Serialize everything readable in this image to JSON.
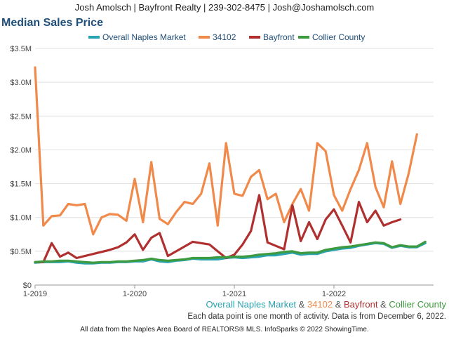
{
  "header": {
    "text": "Josh Amolsch | Bayfront Realty | 239-302-8475 | Josh@Joshamolsch.com"
  },
  "title": "Median Sales Price",
  "legend": [
    "Overall Naples Market",
    "34102",
    "Bayfront",
    "Collier County"
  ],
  "caption": {
    "overall": "Overall Naples Market",
    "sep1": " & ",
    "zip": "34102",
    "sep2": " & ",
    "bayfront": "Bayfront",
    "sep3": " & ",
    "collier": "Collier County",
    "note": "Each data point is one month of activity. Data is from December 6, 2022."
  },
  "footer": "All data from the Naples Area Board of REALTORS® MLS. InfoSparks © 2022 ShowingTime.",
  "colors": {
    "overall": "#2aa3b0",
    "zip": "#f0894a",
    "bayfront": "#b03030",
    "collier": "#3e9a3e",
    "title": "#1f4e79"
  },
  "chart_data": {
    "type": "line",
    "x_labels": [
      "1-2019",
      "1-2020",
      "1-2021",
      "1-2022"
    ],
    "x_label_index": [
      0,
      12,
      24,
      36
    ],
    "y_ticks": [
      "$0",
      "$0.5M",
      "$1.0M",
      "$1.5M",
      "$2.0M",
      "$2.5M",
      "$3.0M",
      "$3.5M"
    ],
    "ylim": [
      0,
      3.5
    ],
    "y_unit": "$M",
    "grid": true,
    "legend_position": "top",
    "series": [
      {
        "name": "Overall Naples Market",
        "color": "#2aa3b0",
        "values": [
          0.33,
          0.34,
          0.34,
          0.34,
          0.35,
          0.33,
          0.32,
          0.32,
          0.33,
          0.33,
          0.34,
          0.34,
          0.35,
          0.35,
          0.38,
          0.35,
          0.34,
          0.36,
          0.37,
          0.39,
          0.38,
          0.38,
          0.38,
          0.4,
          0.41,
          0.4,
          0.41,
          0.42,
          0.44,
          0.44,
          0.46,
          0.48,
          0.45,
          0.46,
          0.46,
          0.5,
          0.52,
          0.54,
          0.55,
          0.58,
          0.6,
          0.62,
          0.61,
          0.55,
          0.58,
          0.56,
          0.56,
          0.62
        ]
      },
      {
        "name": "34102",
        "color": "#f0894a",
        "values": [
          3.22,
          0.88,
          1.02,
          1.03,
          1.2,
          1.18,
          1.2,
          0.75,
          1.0,
          1.05,
          1.04,
          0.95,
          1.57,
          0.93,
          1.82,
          0.98,
          0.9,
          1.08,
          1.23,
          1.2,
          1.35,
          1.8,
          0.88,
          2.1,
          1.35,
          1.32,
          1.6,
          1.7,
          1.27,
          1.35,
          0.93,
          1.2,
          1.42,
          1.1,
          2.1,
          1.98,
          1.33,
          1.1,
          1.42,
          1.7,
          2.1,
          1.45,
          1.15,
          1.83,
          1.2,
          1.65,
          2.23
        ]
      },
      {
        "name": "Bayfront",
        "color": "#b03030",
        "values": [
          0.34,
          0.34,
          0.62,
          0.42,
          0.48,
          0.4,
          0.43,
          0.46,
          0.49,
          0.52,
          0.56,
          0.63,
          0.75,
          0.52,
          0.7,
          0.77,
          0.43,
          0.5,
          0.57,
          0.64,
          0.62,
          0.6,
          0.5,
          0.4,
          0.45,
          0.6,
          0.8,
          1.33,
          0.63,
          0.58,
          0.53,
          1.18,
          0.65,
          0.93,
          0.68,
          0.97,
          1.12,
          0.88,
          0.63,
          1.23,
          0.93,
          1.1,
          0.88,
          0.93,
          0.97
        ]
      },
      {
        "name": "Collier County",
        "color": "#3e9a3e",
        "values": [
          0.34,
          0.35,
          0.35,
          0.36,
          0.36,
          0.35,
          0.34,
          0.33,
          0.34,
          0.34,
          0.35,
          0.35,
          0.36,
          0.37,
          0.39,
          0.37,
          0.36,
          0.37,
          0.38,
          0.4,
          0.4,
          0.4,
          0.41,
          0.41,
          0.42,
          0.42,
          0.43,
          0.45,
          0.46,
          0.47,
          0.49,
          0.5,
          0.47,
          0.48,
          0.48,
          0.52,
          0.54,
          0.56,
          0.57,
          0.59,
          0.61,
          0.63,
          0.62,
          0.56,
          0.59,
          0.57,
          0.57,
          0.64
        ]
      }
    ]
  }
}
